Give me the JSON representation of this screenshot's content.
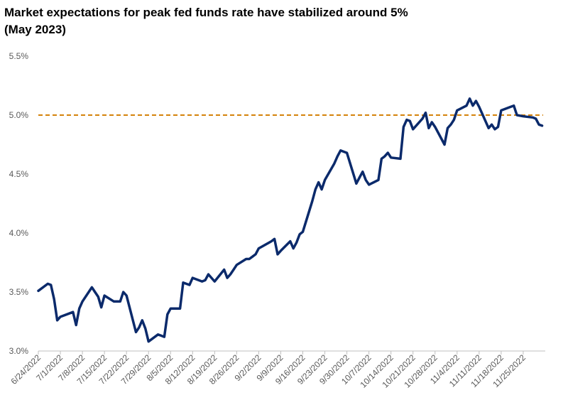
{
  "chart_data": {
    "type": "line",
    "title": "Market expectations for peak fed funds rate have stabilized around  5%",
    "subtitle": "(May 2023)",
    "xlabel": "",
    "ylabel": "",
    "ylim": [
      3.0,
      5.5
    ],
    "y_ticks": [
      "3.0%",
      "3.5%",
      "4.0%",
      "4.5%",
      "5.0%",
      "5.5%"
    ],
    "x_ticks": [
      "6/24/2022",
      "7/1/2022",
      "7/8/2022",
      "7/15/2022",
      "7/22/2022",
      "7/29/2022",
      "8/5/2022",
      "8/12/2022",
      "8/19/2022",
      "8/26/2022",
      "9/2/2022",
      "9/9/2022",
      "9/16/2022",
      "9/23/2022",
      "9/30/2022",
      "10/7/2022",
      "10/14/2022",
      "10/21/2022",
      "10/28/2022",
      "11/4/2022",
      "11/11/2022",
      "11/18/2022",
      "11/25/2022"
    ],
    "grid": false,
    "legend": "none",
    "reference_line": {
      "value": 5.0,
      "style": "dashed",
      "color": "#D4820A"
    },
    "line_color": "#0B2A6B",
    "series": [
      {
        "x": [
          "2022-06-24",
          "2022-06-27",
          "2022-06-28",
          "2022-06-29",
          "2022-06-30",
          "2022-07-01",
          "2022-07-05",
          "2022-07-06",
          "2022-07-07",
          "2022-07-08",
          "2022-07-11",
          "2022-07-12",
          "2022-07-13",
          "2022-07-14",
          "2022-07-15",
          "2022-07-18",
          "2022-07-19",
          "2022-07-20",
          "2022-07-21",
          "2022-07-22",
          "2022-07-25",
          "2022-07-26",
          "2022-07-27",
          "2022-07-28",
          "2022-07-29",
          "2022-08-01",
          "2022-08-02",
          "2022-08-03",
          "2022-08-04",
          "2022-08-05",
          "2022-08-08",
          "2022-08-09",
          "2022-08-10",
          "2022-08-11",
          "2022-08-12",
          "2022-08-15",
          "2022-08-16",
          "2022-08-17",
          "2022-08-18",
          "2022-08-19",
          "2022-08-22",
          "2022-08-23",
          "2022-08-24",
          "2022-08-25",
          "2022-08-26",
          "2022-08-29",
          "2022-08-30",
          "2022-08-31",
          "2022-09-01",
          "2022-09-02",
          "2022-09-06",
          "2022-09-07",
          "2022-09-08",
          "2022-09-09",
          "2022-09-12",
          "2022-09-13",
          "2022-09-14",
          "2022-09-15",
          "2022-09-16",
          "2022-09-19",
          "2022-09-20",
          "2022-09-21",
          "2022-09-22",
          "2022-09-23",
          "2022-09-26",
          "2022-09-27",
          "2022-09-28",
          "2022-09-29",
          "2022-09-30",
          "2022-10-03",
          "2022-10-04",
          "2022-10-05",
          "2022-10-06",
          "2022-10-07",
          "2022-10-10",
          "2022-10-11",
          "2022-10-12",
          "2022-10-13",
          "2022-10-14",
          "2022-10-17",
          "2022-10-18",
          "2022-10-19",
          "2022-10-20",
          "2022-10-21",
          "2022-10-24",
          "2022-10-25",
          "2022-10-26",
          "2022-10-27",
          "2022-10-28",
          "2022-10-31",
          "2022-11-01",
          "2022-11-02",
          "2022-11-03",
          "2022-11-04",
          "2022-11-07",
          "2022-11-08",
          "2022-11-09",
          "2022-11-10",
          "2022-11-11",
          "2022-11-14",
          "2022-11-15",
          "2022-11-16",
          "2022-11-17",
          "2022-11-18",
          "2022-11-21",
          "2022-11-22",
          "2022-11-23",
          "2022-11-25",
          "2022-11-28",
          "2022-11-29",
          "2022-11-30",
          "2022-12-01"
        ],
        "values": [
          3.51,
          3.57,
          3.56,
          3.44,
          3.26,
          3.29,
          3.33,
          3.22,
          3.36,
          3.42,
          3.54,
          3.5,
          3.46,
          3.37,
          3.47,
          3.42,
          3.42,
          3.42,
          3.5,
          3.47,
          3.16,
          3.2,
          3.26,
          3.19,
          3.08,
          3.14,
          3.13,
          3.12,
          3.31,
          3.36,
          3.36,
          3.58,
          3.57,
          3.56,
          3.62,
          3.59,
          3.6,
          3.65,
          3.62,
          3.59,
          3.69,
          3.62,
          3.65,
          3.69,
          3.73,
          3.78,
          3.78,
          3.8,
          3.82,
          3.87,
          3.93,
          3.95,
          3.82,
          3.85,
          3.93,
          3.87,
          3.92,
          3.99,
          4.01,
          4.27,
          4.37,
          4.43,
          4.37,
          4.45,
          4.59,
          4.65,
          4.7,
          4.69,
          4.68,
          4.42,
          4.47,
          4.52,
          4.45,
          4.41,
          4.45,
          4.63,
          4.65,
          4.68,
          4.64,
          4.63,
          4.9,
          4.96,
          4.95,
          4.88,
          4.97,
          5.02,
          4.89,
          4.94,
          4.9,
          4.75,
          4.89,
          4.92,
          4.96,
          5.04,
          5.08,
          5.14,
          5.08,
          5.12,
          5.07,
          4.89,
          4.92,
          4.88,
          4.9,
          5.04,
          5.07,
          5.08,
          5.0,
          4.99,
          4.98,
          4.97,
          4.92,
          4.91
        ]
      }
    ]
  }
}
